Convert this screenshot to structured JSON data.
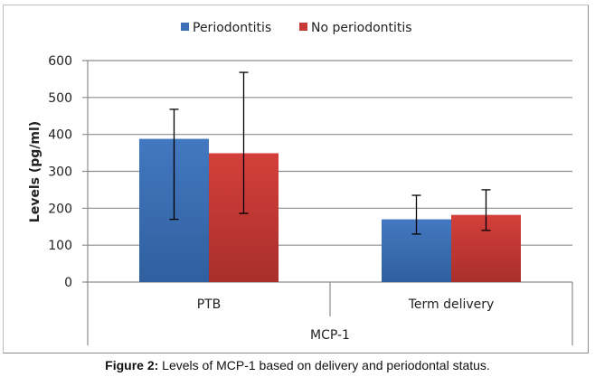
{
  "caption": {
    "label": "Figure 2:",
    "text": " Levels of MCP-1 based on delivery and periodontal status."
  },
  "chart_data": {
    "type": "bar",
    "title": "",
    "xlabel": "MCP-1",
    "ylabel": "Levels (pg/ml)",
    "ylim": [
      0,
      600
    ],
    "yticks": [
      0,
      100,
      200,
      300,
      400,
      500,
      600
    ],
    "grid": true,
    "legend_position": "top",
    "categories": [
      "PTB",
      "Term delivery"
    ],
    "series": [
      {
        "name": "Periodontitis",
        "color": "#3b6fb6",
        "values": [
          388,
          170
        ],
        "error_low": [
          170,
          130
        ],
        "error_high": [
          468,
          235
        ]
      },
      {
        "name": "No periodontitis",
        "color": "#c63a37",
        "values": [
          349,
          182
        ],
        "error_low": [
          186,
          140
        ],
        "error_high": [
          568,
          250
        ]
      }
    ]
  }
}
